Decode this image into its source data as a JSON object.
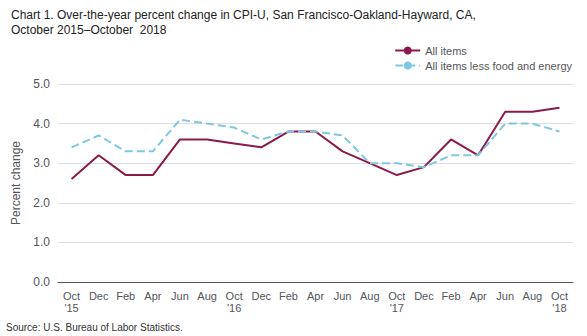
{
  "chart_data": {
    "type": "line",
    "title": "Chart 1. Over-the-year percent change in CPI-U, San Francisco-Oakland-Hayward, CA,",
    "subtitle": "October 2015–October  2018",
    "y_label": "Percent change",
    "source": "Source: U.S. Bureau of Labor Statistics.",
    "categories": [
      "Oct\n'15",
      "Dec",
      "Feb",
      "Apr",
      "Jun",
      "Aug",
      "Oct\n'16",
      "Dec",
      "Feb",
      "Apr",
      "Jun",
      "Aug",
      "Oct\n'17",
      "Dec",
      "Feb",
      "Apr",
      "Jun",
      "Aug",
      "Oct\n'18"
    ],
    "series": [
      {
        "name": "All items",
        "color": "#8B1A4A",
        "line_style": "solid",
        "values": [
          2.6,
          3.2,
          2.7,
          2.7,
          3.6,
          3.6,
          3.5,
          3.4,
          3.8,
          3.8,
          3.3,
          3.0,
          2.7,
          2.9,
          3.6,
          3.2,
          4.3,
          4.3,
          4.4
        ]
      },
      {
        "name": "All items less food and energy",
        "color": "#7EC8E3",
        "line_style": "dashed",
        "values": [
          3.4,
          3.7,
          3.3,
          3.3,
          4.1,
          4.0,
          3.9,
          3.6,
          3.8,
          3.8,
          3.7,
          3.0,
          3.0,
          2.9,
          3.2,
          3.2,
          4.0,
          4.0,
          3.8
        ]
      }
    ],
    "ylim": [
      0.0,
      5.0
    ],
    "yticks": [
      {
        "value": 0.0,
        "label": "0.0"
      },
      {
        "value": 1.0,
        "label": "1.0"
      },
      {
        "value": 2.0,
        "label": "2.0"
      },
      {
        "value": 3.0,
        "label": "3.0"
      },
      {
        "value": 4.0,
        "label": "4.0"
      },
      {
        "value": 5.0,
        "label": "5.0"
      }
    ],
    "grid": true,
    "legend": "upper right"
  }
}
